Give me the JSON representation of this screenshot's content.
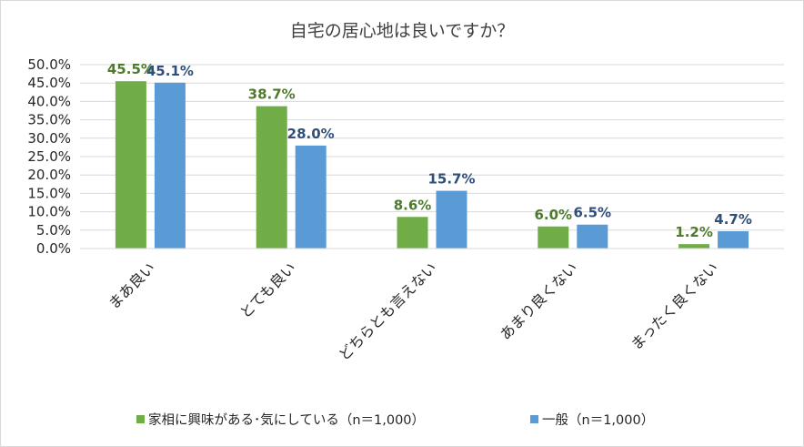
{
  "chart_data": {
    "type": "bar",
    "title": "自宅の居心地は良いですか？",
    "categories": [
      "まあ良い",
      "とても良い",
      "どちらとも言えない",
      "あまり良くない",
      "まったく良くない"
    ],
    "series": [
      {
        "name": "家相に興味がある･気にしている（n＝1,000）",
        "color": "#70ad47",
        "label_color": "#4e7a2e",
        "values": [
          45.5,
          38.7,
          8.6,
          6.0,
          1.2
        ],
        "labels": [
          "45.5%",
          "38.7%",
          "8.6%",
          "6.0%",
          "1.2%"
        ]
      },
      {
        "name": "一般（n＝1,000）",
        "color": "#5b9bd5",
        "label_color": "#2f4f7a",
        "values": [
          45.1,
          28.0,
          15.7,
          6.5,
          4.7
        ],
        "labels": [
          "45.1%",
          "28.0%",
          "15.7%",
          "6.5%",
          "4.7%"
        ]
      }
    ],
    "y_ticks": [
      "0.0%",
      "5.0%",
      "10.0%",
      "15.0%",
      "20.0%",
      "25.0%",
      "30.0%",
      "35.0%",
      "40.0%",
      "45.0%",
      "50.0%"
    ],
    "ylim": [
      0,
      50
    ],
    "ytick_step": 5,
    "grid": true,
    "legend_position": "bottom"
  }
}
